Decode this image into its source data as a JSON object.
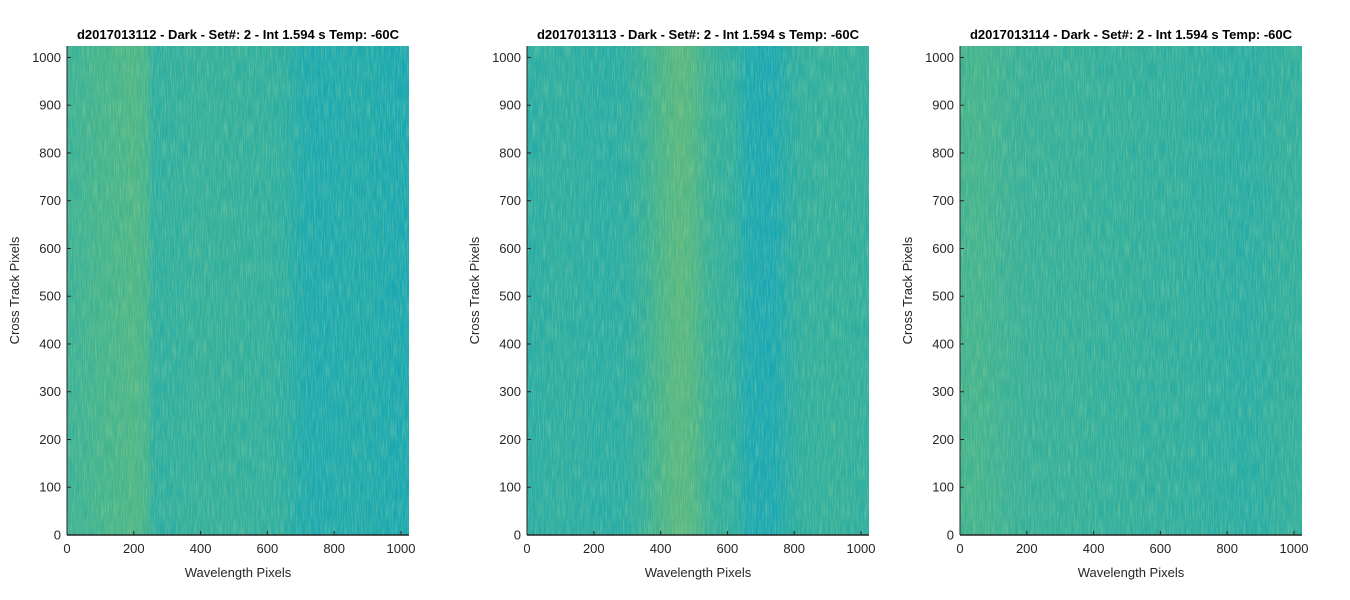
{
  "chart_data": [
    {
      "type": "heatmap",
      "title": "d2017013112 - Dark - Set#: 2 - Int 1.594 s Temp: -60C",
      "xlabel": "Wavelength Pixels",
      "ylabel": "Cross Track Pixels",
      "xlim": [
        0,
        1024
      ],
      "ylim": [
        0,
        1024
      ],
      "xticks": [
        0,
        200,
        400,
        600,
        800,
        1000
      ],
      "yticks": [
        0,
        100,
        200,
        300,
        400,
        500,
        600,
        700,
        800,
        900,
        1000
      ],
      "colormap": "parula",
      "column_profile": {
        "x": [
          0,
          50,
          100,
          150,
          200,
          240,
          260,
          300,
          350,
          400,
          450,
          500,
          550,
          600,
          650,
          700,
          750,
          800,
          850,
          900,
          950,
          1000,
          1024
        ],
        "level": [
          0.52,
          0.55,
          0.58,
          0.6,
          0.62,
          0.58,
          0.45,
          0.46,
          0.47,
          0.49,
          0.48,
          0.48,
          0.47,
          0.47,
          0.45,
          0.38,
          0.36,
          0.37,
          0.38,
          0.38,
          0.36,
          0.34,
          0.35
        ]
      }
    },
    {
      "type": "heatmap",
      "title": "d2017013113 - Dark - Set#: 2 - Int 1.594 s Temp: -60C",
      "xlabel": "Wavelength Pixels",
      "ylabel": "Cross Track Pixels",
      "xlim": [
        0,
        1024
      ],
      "ylim": [
        0,
        1024
      ],
      "xticks": [
        0,
        200,
        400,
        600,
        800,
        1000
      ],
      "yticks": [
        0,
        100,
        200,
        300,
        400,
        500,
        600,
        700,
        800,
        900,
        1000
      ],
      "colormap": "parula",
      "column_profile": {
        "x": [
          0,
          50,
          100,
          150,
          200,
          250,
          300,
          350,
          380,
          420,
          460,
          500,
          540,
          580,
          620,
          660,
          700,
          740,
          780,
          820,
          870,
          920,
          970,
          1024
        ],
        "level": [
          0.42,
          0.44,
          0.45,
          0.44,
          0.43,
          0.42,
          0.44,
          0.5,
          0.56,
          0.62,
          0.66,
          0.62,
          0.52,
          0.48,
          0.46,
          0.36,
          0.32,
          0.34,
          0.42,
          0.46,
          0.47,
          0.48,
          0.47,
          0.46
        ]
      }
    },
    {
      "type": "heatmap",
      "title": "d2017013114 - Dark - Set#: 2 - Int 1.594 s Temp: -60C",
      "xlabel": "Wavelength Pixels",
      "ylabel": "Cross Track Pixels",
      "xlim": [
        0,
        1024
      ],
      "ylim": [
        0,
        1024
      ],
      "xticks": [
        0,
        200,
        400,
        600,
        800,
        1000
      ],
      "yticks": [
        0,
        100,
        200,
        300,
        400,
        500,
        600,
        700,
        800,
        900,
        1000
      ],
      "colormap": "parula",
      "column_profile": {
        "x": [
          0,
          50,
          100,
          150,
          200,
          250,
          300,
          350,
          400,
          450,
          500,
          550,
          600,
          650,
          700,
          750,
          800,
          850,
          900,
          950,
          1000,
          1024
        ],
        "level": [
          0.56,
          0.58,
          0.55,
          0.52,
          0.5,
          0.5,
          0.49,
          0.5,
          0.48,
          0.47,
          0.48,
          0.46,
          0.46,
          0.46,
          0.45,
          0.44,
          0.44,
          0.42,
          0.44,
          0.46,
          0.47,
          0.47
        ]
      }
    }
  ]
}
